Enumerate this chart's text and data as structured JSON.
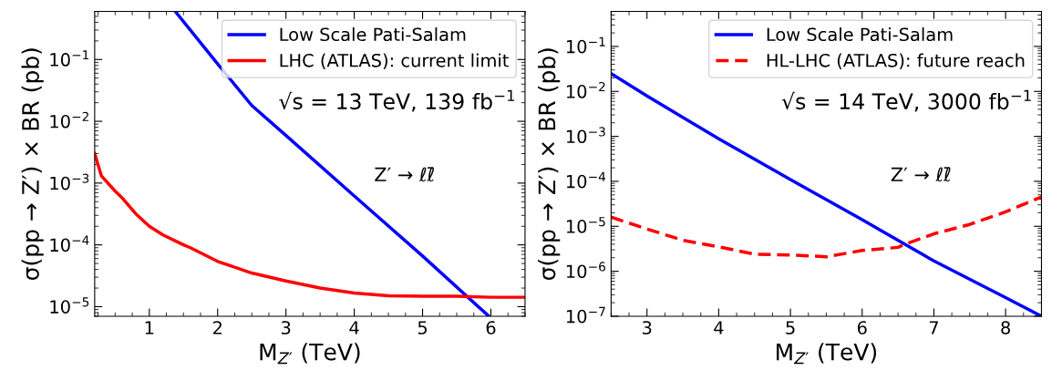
{
  "chart_data": [
    {
      "type": "line",
      "xlabel": "M$_{Z′}$ (TeV)",
      "ylabel": "σ(pp → Z′) × BR (pb)",
      "log": "y",
      "grid": false,
      "legend": "top right",
      "xlim": [
        0.2,
        6.5
      ],
      "xticks": [
        1,
        2,
        3,
        4,
        5,
        6
      ],
      "ylim": [
        7e-06,
        0.6
      ],
      "yticks": [
        {
          "value": 1e-05,
          "label": "10$^{−5}$"
        },
        {
          "value": 0.0001,
          "label": "10$^{−4}$"
        },
        {
          "value": 0.001,
          "label": "10$^{−3}$"
        },
        {
          "value": 0.01,
          "label": "10$^{−2}$"
        },
        {
          "value": 0.1,
          "label": "10$^{−1}$"
        }
      ],
      "annotations": [
        "√s = 13 TeV, 139 fb$^{−1}$",
        "Z′ → ℓℓ̄"
      ],
      "series": [
        {
          "name": "Low Scale Pati-Salam",
          "color": "#0000ff",
          "line_style": "solid",
          "x": [
            1.38,
            2.0,
            2.5,
            3.0,
            4.0,
            5.0,
            5.97
          ],
          "values": [
            0.6,
            0.085,
            0.018,
            0.0059,
            0.00062,
            6.6e-05,
            7e-06
          ]
        },
        {
          "name": "LHC (ATLAS): current limit",
          "color": "#ff0000",
          "line_style": "solid",
          "x": [
            0.2,
            0.3,
            0.5,
            0.6,
            0.8,
            1.0,
            1.2,
            1.5,
            1.6,
            2.0,
            2.5,
            3.0,
            3.5,
            4.0,
            4.5,
            5.0,
            5.5,
            6.0,
            6.5
          ],
          "values": [
            0.003,
            0.0013,
            0.00074,
            0.00058,
            0.00032,
            0.0002,
            0.000145,
            0.0001,
            9e-05,
            5.4e-05,
            3.5e-05,
            2.6e-05,
            2e-05,
            1.66e-05,
            1.5e-05,
            1.47e-05,
            1.47e-05,
            1.42e-05,
            1.42e-05
          ]
        }
      ]
    },
    {
      "type": "line",
      "xlabel": "M$_{Z′}$ (TeV)",
      "ylabel": "σ(pp → Z′) × BR (pb)",
      "log": "y",
      "grid": false,
      "legend": "top right",
      "xlim": [
        2.5,
        8.5
      ],
      "xticks": [
        3,
        4,
        5,
        6,
        7,
        8
      ],
      "ylim": [
        1e-07,
        0.6
      ],
      "yticks": [
        {
          "value": 1e-07,
          "label": "10$^{−7}$"
        },
        {
          "value": 1e-06,
          "label": "10$^{−6}$"
        },
        {
          "value": 1e-05,
          "label": "10$^{−5}$"
        },
        {
          "value": 0.0001,
          "label": "10$^{−4}$"
        },
        {
          "value": 0.001,
          "label": "10$^{−3}$"
        },
        {
          "value": 0.01,
          "label": "10$^{−2}$"
        },
        {
          "value": 0.1,
          "label": "10$^{−1}$"
        }
      ],
      "annotations": [
        "√s = 14 TeV, 3000 fb$^{−1}$",
        "Z′ → ℓℓ̄"
      ],
      "series": [
        {
          "name": "Low Scale Pati-Salam",
          "color": "#0000ff",
          "line_style": "solid",
          "x": [
            2.5,
            3.0,
            4.0,
            5.0,
            6.0,
            7.0,
            8.0,
            8.5
          ],
          "values": [
            0.025,
            0.0079,
            0.00088,
            0.00011,
            1.4e-05,
            1.7e-06,
            2.6e-07,
            1e-07
          ]
        },
        {
          "name": "HL-LHC (ATLAS): future reach",
          "color": "#ff0000",
          "line_style": "dashed",
          "x": [
            2.5,
            3.0,
            3.5,
            4.0,
            4.5,
            5.0,
            5.5,
            6.0,
            6.5,
            6.6,
            7.0,
            7.5,
            8.0,
            8.5
          ],
          "values": [
            1.6e-05,
            8.7e-06,
            4.9e-06,
            3.5e-06,
            2.4e-06,
            2.3e-06,
            2.1e-06,
            2.9e-06,
            3.4e-06,
            4e-06,
            6.8e-06,
            1.1e-05,
            2.1e-05,
            4.5e-05
          ]
        }
      ]
    }
  ]
}
